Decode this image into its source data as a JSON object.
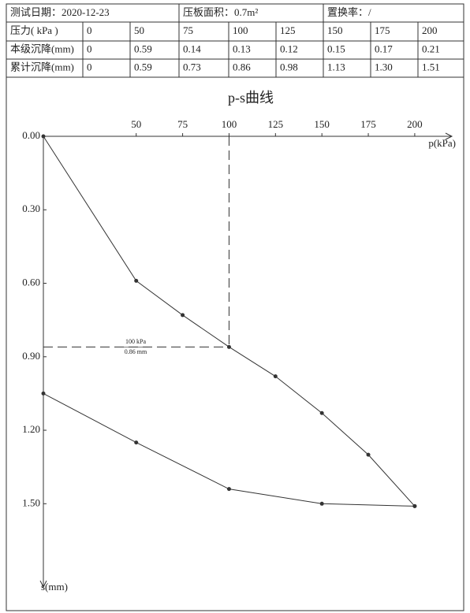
{
  "table": {
    "header": [
      "测试日期：2020-12-23",
      "压板面积：0.7m²",
      "置换率：/"
    ],
    "rows": [
      [
        "压力( kPa )",
        "0",
        "50",
        "75",
        "100",
        "125",
        "150",
        "175",
        "200"
      ],
      [
        "本级沉降(mm)",
        "0",
        "0.59",
        "0.14",
        "0.13",
        "0.12",
        "0.15",
        "0.17",
        "0.21"
      ],
      [
        "累计沉降(mm)",
        "0",
        "0.59",
        "0.73",
        "0.86",
        "0.98",
        "1.13",
        "1.30",
        "1.51"
      ]
    ]
  },
  "chart_data": {
    "type": "line",
    "title": "p-s曲线",
    "x_label": "p(kPa)",
    "y_label": "s(mm)",
    "xlim": [
      0,
      220
    ],
    "xticks": [
      50,
      75,
      100,
      125,
      150,
      175,
      200
    ],
    "ylim": [
      0,
      1.84
    ],
    "yticks": [
      {
        "value": 0,
        "label": "0.00"
      },
      {
        "value": 0.3,
        "label": "0.30"
      },
      {
        "value": 0.6,
        "label": "0.60"
      },
      {
        "value": 0.9,
        "label": "0.90"
      },
      {
        "value": 1.2,
        "label": "1.20"
      },
      {
        "value": 1.5,
        "label": "1.50"
      }
    ],
    "series": [
      {
        "color": "#333333",
        "x": [
          0,
          50,
          75,
          100,
          125,
          150,
          175,
          200
        ],
        "values": [
          0,
          0.59,
          0.73,
          0.86,
          0.98,
          1.13,
          1.3,
          1.51
        ]
      },
      {
        "color": "#333333",
        "x": [
          200,
          150,
          100,
          50,
          0
        ],
        "values": [
          1.51,
          1.5,
          1.44,
          1.25,
          1.05
        ]
      }
    ],
    "annotation": {
      "x": 100,
      "y": 0.86,
      "lines": [
        "100 kPa",
        "0.86 mm"
      ]
    }
  }
}
